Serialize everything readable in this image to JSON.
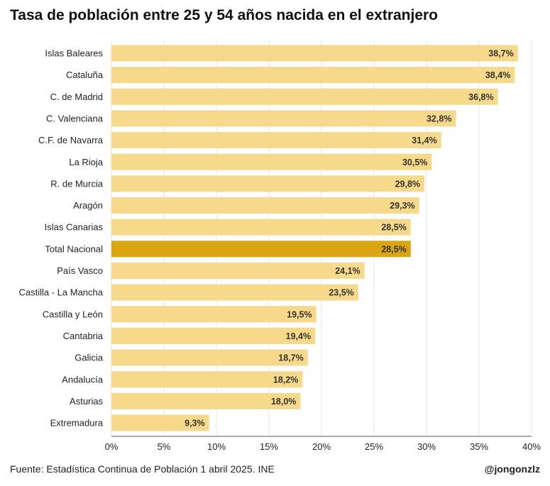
{
  "chart_data": {
    "type": "bar",
    "orientation": "horizontal",
    "title": "Tasa de población entre 25 y 54 años nacida en el extranjero",
    "categories": [
      "Islas Baleares",
      "Cataluña",
      "C. de Madrid",
      "C. Valenciana",
      "C.F. de Navarra",
      "La Rioja",
      "R. de Murcia",
      "Aragón",
      "Islas Canarias",
      "Total Nacional",
      "País Vasco",
      "Castilla - La Mancha",
      "Castilla y León",
      "Cantabria",
      "Galicia",
      "Andalucía",
      "Asturias",
      "Extremadura"
    ],
    "values": [
      38.7,
      38.4,
      36.8,
      32.8,
      31.4,
      30.5,
      29.8,
      29.3,
      28.5,
      28.5,
      24.1,
      23.5,
      19.5,
      19.4,
      18.7,
      18.2,
      18.0,
      9.3
    ],
    "value_labels": [
      "38,7%",
      "38,4%",
      "36,8%",
      "32,8%",
      "31,4%",
      "30,5%",
      "29,8%",
      "29,3%",
      "28,5%",
      "28,5%",
      "24,1%",
      "23,5%",
      "19,5%",
      "19,4%",
      "18,7%",
      "18,2%",
      "18,0%",
      "9,3%"
    ],
    "highlight": "Total Nacional",
    "xlim": [
      0,
      40
    ],
    "xticks": [
      0,
      5,
      10,
      15,
      20,
      25,
      30,
      35,
      40
    ],
    "xtick_labels": [
      "0%",
      "5%",
      "10%",
      "15%",
      "20%",
      "25%",
      "30%",
      "35%",
      "40%"
    ],
    "xlabel": "",
    "ylabel": "",
    "grid": "vertical",
    "colors": {
      "bar": "#f7d98b",
      "highlight": "#dba412",
      "grid": "#e3e3e3",
      "text": "#222222"
    }
  },
  "footer": {
    "source": "Fuente: Estadística Continua de Población 1 abril 2025. INE",
    "handle": "@jongonzlz"
  }
}
